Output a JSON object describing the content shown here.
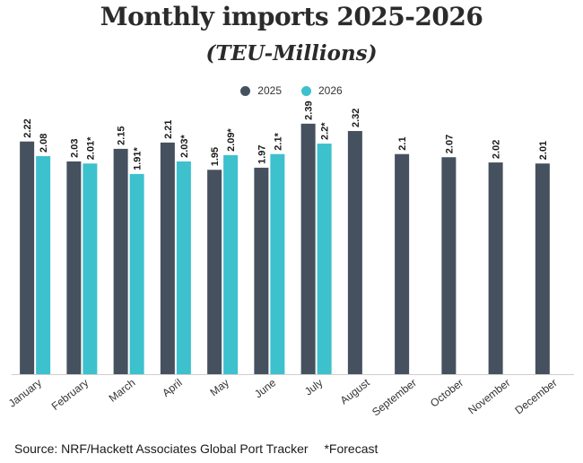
{
  "chart_data": {
    "type": "bar",
    "title": "Monthly imports 2025-2026",
    "subtitle": "(TEU-Millions)",
    "categories": [
      "January",
      "February",
      "March",
      "April",
      "May",
      "June",
      "July",
      "August",
      "September",
      "October",
      "November",
      "December"
    ],
    "series": [
      {
        "name": "2025",
        "color": "#46515f",
        "values": [
          2.22,
          2.03,
          2.15,
          2.21,
          1.95,
          1.97,
          2.39,
          2.32,
          2.1,
          2.07,
          2.02,
          2.01
        ],
        "labels": [
          "2.22",
          "2.03",
          "2.15",
          "2.21",
          "1.95",
          "1.97",
          "2.39",
          "2.32",
          "2.1",
          "2.07",
          "2.02",
          "2.01"
        ]
      },
      {
        "name": "2026",
        "color": "#3cc1cd",
        "values": [
          2.08,
          2.01,
          1.91,
          2.03,
          2.09,
          2.1,
          2.2,
          null,
          null,
          null,
          null,
          null
        ],
        "labels": [
          "2.08",
          "2.01*",
          "1.91*",
          "2.03*",
          "2.09*",
          "2.1*",
          "2.2*",
          null,
          null,
          null,
          null,
          null
        ]
      }
    ],
    "ylim": [
      0,
      2.5
    ],
    "xlabel": "",
    "ylabel": "",
    "legend": "top-center",
    "grid": false
  },
  "footer": {
    "source": "Source: NRF/Hackett Associates Global Port Tracker",
    "note": "*Forecast"
  }
}
